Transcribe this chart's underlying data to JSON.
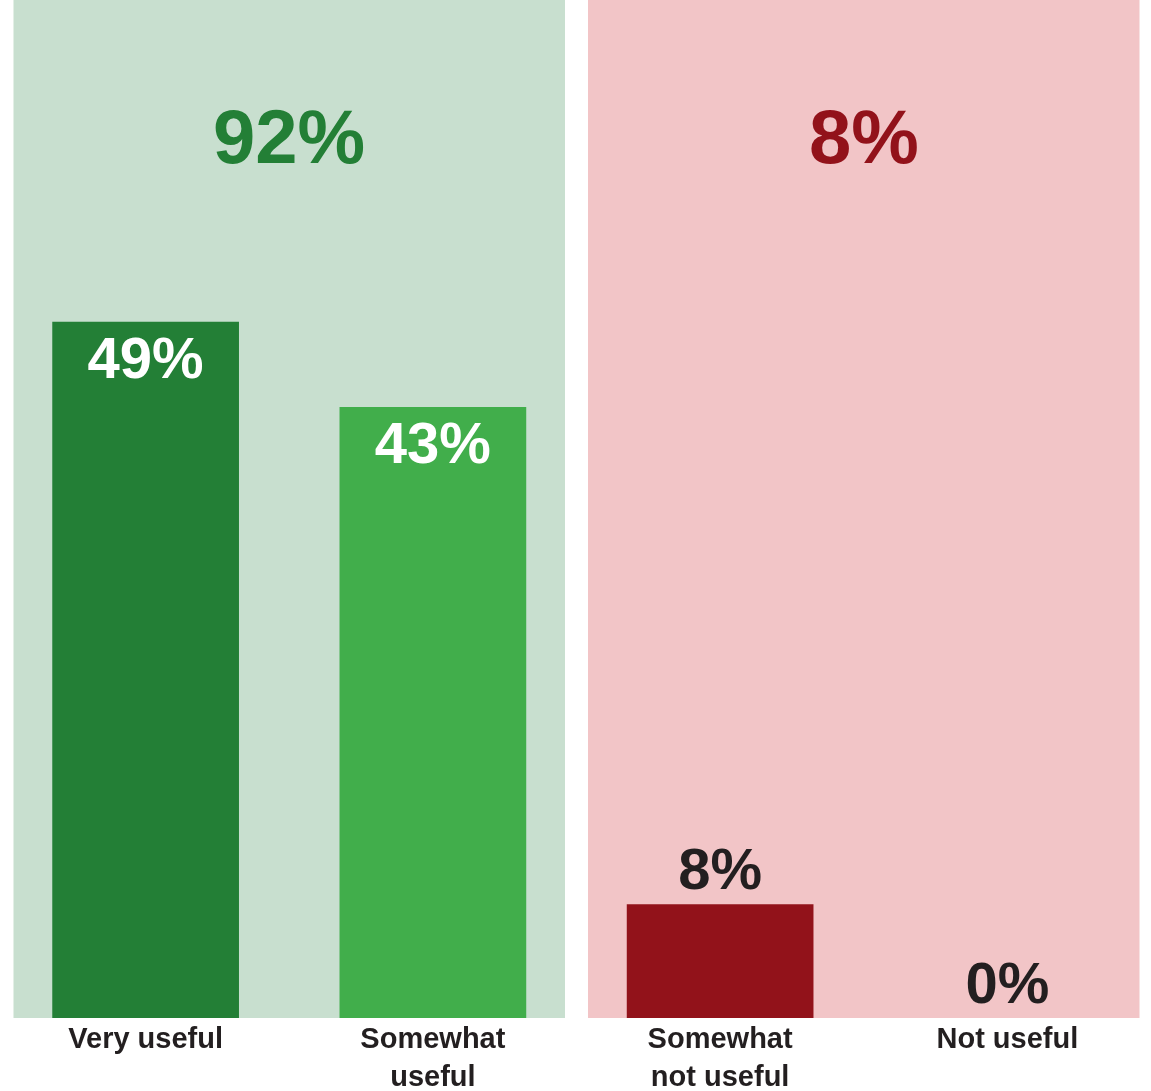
{
  "chart_data": {
    "type": "bar",
    "categories": [
      "Very useful",
      "Somewhat useful",
      "Somewhat not useful",
      "Not useful"
    ],
    "values": [
      49,
      43,
      8,
      0
    ],
    "colors": [
      "#237f36",
      "#41ae4b",
      "#92121a",
      "#b03030"
    ],
    "value_labels": [
      "49%",
      "43%",
      "8%",
      "0%"
    ],
    "tick_labels": "x",
    "bands": [
      {
        "axis": "x",
        "from": "Very useful",
        "to": "Somewhat useful",
        "label": "92%",
        "color": "#c8dfcf"
      },
      {
        "axis": "x",
        "from": "Somewhat not useful",
        "to": "Not useful",
        "label": "8%",
        "color": "#f2c5c7"
      }
    ]
  }
}
